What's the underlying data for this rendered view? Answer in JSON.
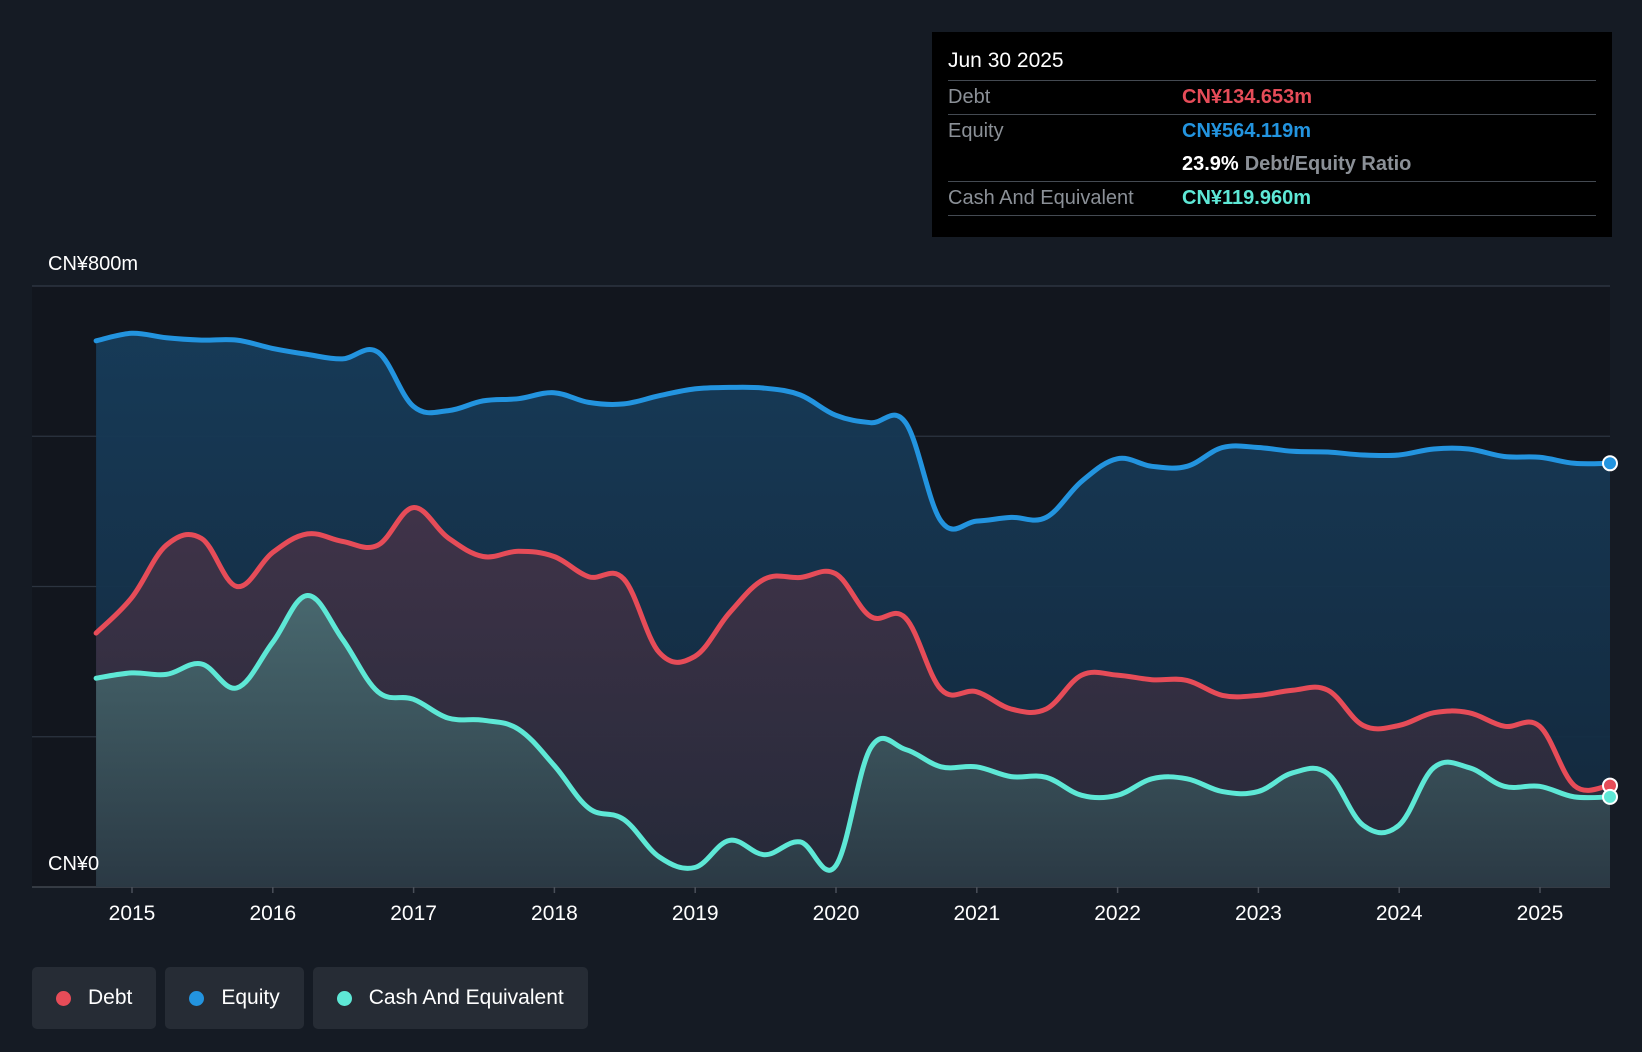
{
  "tooltip": {
    "date": "Jun 30 2025",
    "debt_label": "Debt",
    "debt_value": "CN¥134.653m",
    "equity_label": "Equity",
    "equity_value": "CN¥564.119m",
    "ratio_value": "23.9%",
    "ratio_label": "Debt/Equity Ratio",
    "cash_label": "Cash And Equivalent",
    "cash_value": "CN¥119.960m"
  },
  "legend": {
    "debt": "Debt",
    "equity": "Equity",
    "cash": "Cash And Equivalent"
  },
  "colors": {
    "debt": "#e64c58",
    "equity": "#2394df",
    "cash": "#5ee8d6",
    "background": "#151b24"
  },
  "chart_data": {
    "type": "area",
    "ylim": [
      0,
      800
    ],
    "y_tick_labels": [
      "CN¥0",
      "CN¥800m"
    ],
    "x_tick_labels": [
      "2015",
      "2016",
      "2017",
      "2018",
      "2019",
      "2020",
      "2021",
      "2022",
      "2023",
      "2024",
      "2025"
    ],
    "series": [
      {
        "name": "Debt",
        "x": [
          "2014-09-30",
          "2014-12-31",
          "2015-03-31",
          "2015-06-30",
          "2015-09-30",
          "2015-12-31",
          "2016-03-31",
          "2016-06-30",
          "2016-09-30",
          "2016-12-31",
          "2017-03-31",
          "2017-06-30",
          "2017-09-30",
          "2017-12-31",
          "2018-03-31",
          "2018-06-30",
          "2018-09-30",
          "2018-12-31",
          "2019-03-31",
          "2019-06-30",
          "2019-09-30",
          "2019-12-31",
          "2020-03-31",
          "2020-06-30",
          "2020-09-30",
          "2020-12-31",
          "2021-03-31",
          "2021-06-30",
          "2021-09-30",
          "2021-12-31",
          "2022-03-31",
          "2022-06-30",
          "2022-09-30",
          "2022-12-31",
          "2023-03-31",
          "2023-06-30",
          "2023-09-30",
          "2023-12-31",
          "2024-03-31",
          "2024-06-30",
          "2024-09-30",
          "2024-12-31",
          "2025-03-31",
          "2025-06-30"
        ],
        "values": [
          338,
          385,
          455,
          464,
          400,
          445,
          470,
          460,
          455,
          505,
          465,
          440,
          447,
          440,
          413,
          410,
          312,
          307,
          365,
          410,
          412,
          417,
          360,
          358,
          263,
          260,
          237,
          237,
          282,
          282,
          276,
          275,
          255,
          255,
          262,
          262,
          215,
          215,
          232,
          232,
          214,
          214,
          135,
          135
        ]
      },
      {
        "name": "Equity",
        "x": [
          "2014-09-30",
          "2014-12-31",
          "2015-03-31",
          "2015-06-30",
          "2015-09-30",
          "2015-12-31",
          "2016-03-31",
          "2016-06-30",
          "2016-09-30",
          "2016-12-31",
          "2017-03-31",
          "2017-06-30",
          "2017-09-30",
          "2017-12-31",
          "2018-03-31",
          "2018-06-30",
          "2018-09-30",
          "2018-12-31",
          "2019-03-31",
          "2019-06-30",
          "2019-09-30",
          "2019-12-31",
          "2020-03-31",
          "2020-06-30",
          "2020-09-30",
          "2020-12-31",
          "2021-03-31",
          "2021-06-30",
          "2021-09-30",
          "2021-12-31",
          "2022-03-31",
          "2022-06-30",
          "2022-09-30",
          "2022-12-31",
          "2023-03-31",
          "2023-06-30",
          "2023-09-30",
          "2023-12-31",
          "2024-03-31",
          "2024-06-30",
          "2024-09-30",
          "2024-12-31",
          "2025-03-31",
          "2025-06-30"
        ],
        "values": [
          727,
          737,
          731,
          728,
          728,
          717,
          709,
          703,
          712,
          640,
          634,
          647,
          650,
          658,
          645,
          643,
          654,
          663,
          665,
          664,
          655,
          628,
          618,
          618,
          487,
          487,
          492,
          492,
          540,
          570,
          560,
          560,
          585,
          585,
          580,
          579,
          575,
          575,
          583,
          583,
          573,
          572,
          564,
          564
        ]
      },
      {
        "name": "Cash And Equivalent",
        "x": [
          "2014-09-30",
          "2014-12-31",
          "2015-03-31",
          "2015-06-30",
          "2015-09-30",
          "2015-12-31",
          "2016-03-31",
          "2016-06-30",
          "2016-09-30",
          "2016-12-31",
          "2017-03-31",
          "2017-06-30",
          "2017-09-30",
          "2017-12-31",
          "2018-03-31",
          "2018-06-30",
          "2018-09-30",
          "2018-12-31",
          "2019-03-31",
          "2019-06-30",
          "2019-09-30",
          "2019-12-31",
          "2020-03-31",
          "2020-06-30",
          "2020-09-30",
          "2020-12-31",
          "2021-03-31",
          "2021-06-30",
          "2021-09-30",
          "2021-12-31",
          "2022-03-31",
          "2022-06-30",
          "2022-09-30",
          "2022-12-31",
          "2023-03-31",
          "2023-06-30",
          "2023-09-30",
          "2023-12-31",
          "2024-03-31",
          "2024-06-30",
          "2024-09-30",
          "2024-12-31",
          "2025-03-31",
          "2025-06-30"
        ],
        "values": [
          278,
          285,
          283,
          297,
          265,
          325,
          388,
          330,
          260,
          250,
          225,
          222,
          210,
          162,
          105,
          90,
          40,
          26,
          62,
          43,
          60,
          28,
          185,
          183,
          160,
          160,
          147,
          146,
          122,
          122,
          144,
          144,
          127,
          127,
          152,
          151,
          82,
          82,
          159,
          159,
          134,
          134,
          120,
          120
        ]
      }
    ]
  }
}
